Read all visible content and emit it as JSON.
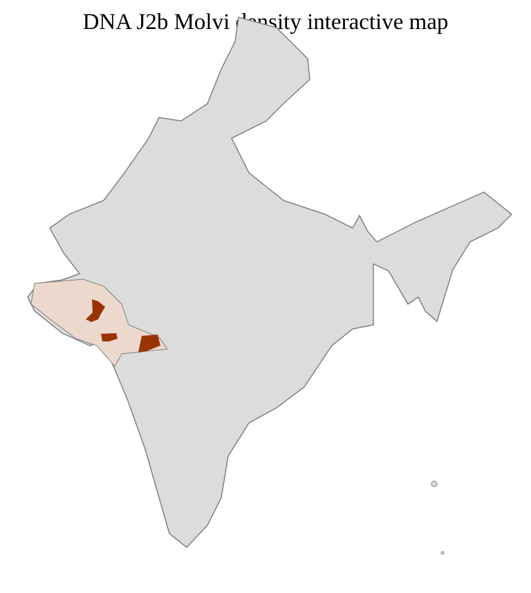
{
  "title": "DNA J2b Molvi density interactive map",
  "colors": {
    "no_data": "#dcdcdc",
    "low_density": "#ecd8cc",
    "high_density": "#993300",
    "state_border": "#808080",
    "district_border": "#ffffff"
  },
  "highlighted_regions": [
    {
      "name": "Gujarat",
      "level": "low"
    },
    {
      "name": "Maharashtra north (Nashik area)",
      "level": "low"
    }
  ]
}
